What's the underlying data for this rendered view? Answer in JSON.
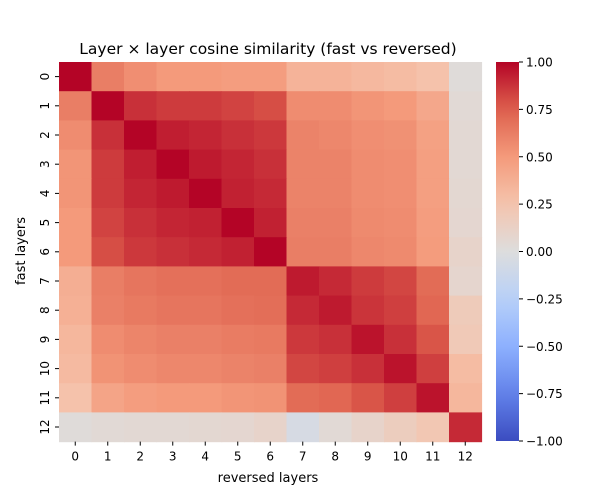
{
  "chart_data": {
    "type": "heatmap",
    "title": "Layer × layer cosine similarity (fast vs reversed)",
    "xlabel": "reversed layers",
    "ylabel": "fast layers",
    "x_categories": [
      "0",
      "1",
      "2",
      "3",
      "4",
      "5",
      "6",
      "7",
      "8",
      "9",
      "10",
      "11",
      "12"
    ],
    "y_categories": [
      "0",
      "1",
      "2",
      "3",
      "4",
      "5",
      "6",
      "7",
      "8",
      "9",
      "10",
      "11",
      "12"
    ],
    "values": [
      [
        1.0,
        0.62,
        0.55,
        0.5,
        0.5,
        0.48,
        0.48,
        0.35,
        0.35,
        0.32,
        0.3,
        0.26,
        0.02
      ],
      [
        0.62,
        1.0,
        0.88,
        0.85,
        0.85,
        0.83,
        0.8,
        0.56,
        0.56,
        0.52,
        0.5,
        0.42,
        0.04
      ],
      [
        0.56,
        0.88,
        1.0,
        0.93,
        0.91,
        0.88,
        0.86,
        0.6,
        0.58,
        0.55,
        0.54,
        0.46,
        0.05
      ],
      [
        0.52,
        0.85,
        0.93,
        1.0,
        0.94,
        0.91,
        0.88,
        0.6,
        0.6,
        0.56,
        0.55,
        0.47,
        0.05
      ],
      [
        0.52,
        0.85,
        0.91,
        0.94,
        1.0,
        0.92,
        0.9,
        0.6,
        0.6,
        0.56,
        0.55,
        0.47,
        0.06
      ],
      [
        0.5,
        0.83,
        0.88,
        0.91,
        0.92,
        1.0,
        0.92,
        0.61,
        0.61,
        0.57,
        0.56,
        0.48,
        0.07
      ],
      [
        0.5,
        0.8,
        0.86,
        0.88,
        0.9,
        0.92,
        1.0,
        0.62,
        0.62,
        0.58,
        0.57,
        0.49,
        0.1
      ],
      [
        0.38,
        0.62,
        0.66,
        0.68,
        0.68,
        0.7,
        0.7,
        0.94,
        0.9,
        0.85,
        0.82,
        0.7,
        0.08
      ],
      [
        0.37,
        0.61,
        0.64,
        0.66,
        0.66,
        0.68,
        0.69,
        0.9,
        0.94,
        0.87,
        0.84,
        0.72,
        0.18
      ],
      [
        0.33,
        0.56,
        0.59,
        0.61,
        0.61,
        0.63,
        0.64,
        0.86,
        0.88,
        0.96,
        0.88,
        0.78,
        0.2
      ],
      [
        0.31,
        0.53,
        0.56,
        0.58,
        0.58,
        0.6,
        0.61,
        0.82,
        0.84,
        0.88,
        0.96,
        0.84,
        0.3
      ],
      [
        0.26,
        0.44,
        0.48,
        0.5,
        0.5,
        0.52,
        0.53,
        0.7,
        0.72,
        0.78,
        0.84,
        0.96,
        0.33
      ],
      [
        0.02,
        0.04,
        0.05,
        0.05,
        0.06,
        0.07,
        0.1,
        -0.05,
        0.04,
        0.1,
        0.16,
        0.22,
        0.9
      ]
    ],
    "vmin": -1.0,
    "vmax": 1.0,
    "colormap": "coolwarm",
    "colorbar_ticks": [
      "1.00",
      "0.75",
      "0.50",
      "0.25",
      "0.00",
      "−0.25",
      "−0.50",
      "−0.75",
      "−1.00"
    ],
    "colorbar_tick_values": [
      1.0,
      0.75,
      0.5,
      0.25,
      0.0,
      -0.25,
      -0.5,
      -0.75,
      -1.0
    ],
    "grid": false
  }
}
